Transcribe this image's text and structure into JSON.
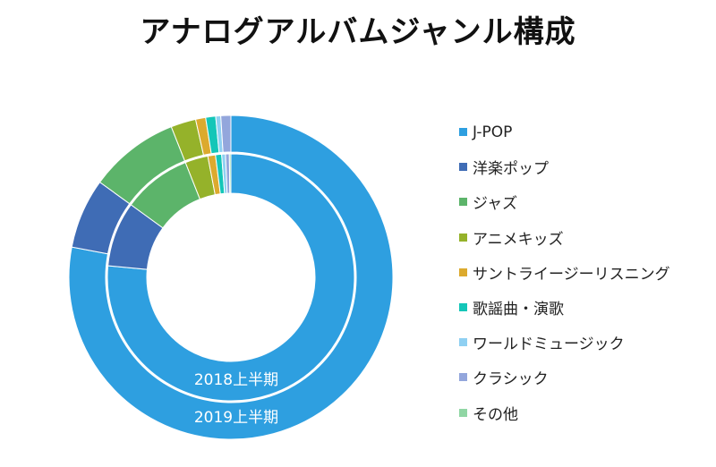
{
  "chart_data": {
    "type": "pie",
    "title": "アナログアルバムジャンル構成",
    "categories": [
      "J-POP",
      "洋楽ポップ",
      "ジャズ",
      "アニメキッズ",
      "サントライージーリスニング",
      "歌謡曲・演歌",
      "ワールドミュージック",
      "クラシック",
      "その他"
    ],
    "colors": [
      "#2e9fe0",
      "#3f6cb5",
      "#5cb46a",
      "#95b22a",
      "#dcaa2e",
      "#14c6b8",
      "#8fd0f2",
      "#93a6dc",
      "#90d6a4"
    ],
    "series": [
      {
        "name": "2018上半期",
        "values": [
          76.5,
          8.5,
          9.0,
          3.0,
          1.0,
          0.8,
          0.5,
          0.5,
          0.2
        ]
      },
      {
        "name": "2019上半期",
        "values": [
          78.0,
          7.0,
          9.0,
          2.5,
          1.0,
          1.0,
          0.5,
          1.0,
          0.0
        ]
      }
    ],
    "legend_position": "right"
  }
}
